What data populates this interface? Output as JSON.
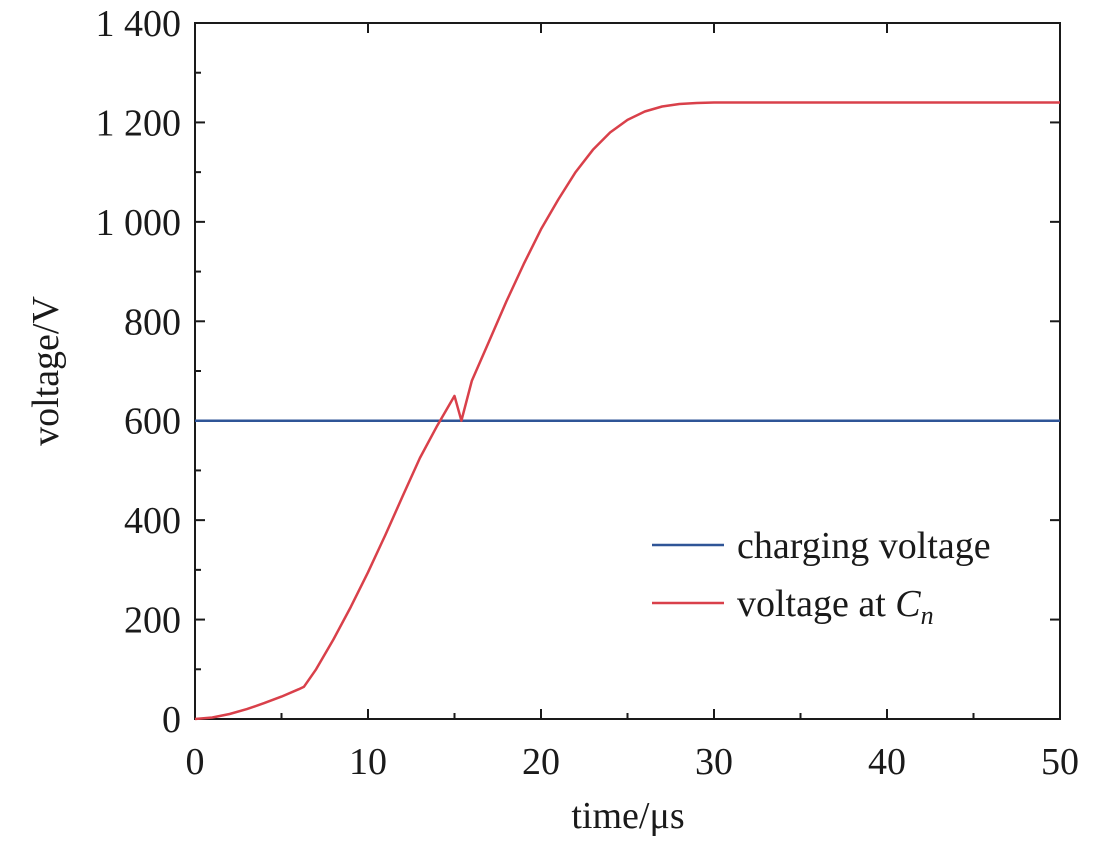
{
  "chart_data": {
    "type": "line",
    "xlabel": "time/μs",
    "ylabel": "voltage/V",
    "xlim": [
      0,
      50
    ],
    "ylim": [
      0,
      1400
    ],
    "x_ticks": [
      0,
      10,
      20,
      30,
      40,
      50
    ],
    "x_tick_labels": [
      "0",
      "10",
      "20",
      "30",
      "40",
      "50"
    ],
    "y_ticks": [
      0,
      200,
      400,
      600,
      800,
      1000,
      1200,
      1400
    ],
    "y_tick_labels": [
      "0",
      "200",
      "400",
      "600",
      "800",
      "1 000",
      "1 200",
      "1 400"
    ],
    "grid": false,
    "legend_position": "lower-right",
    "series": [
      {
        "name": "charging voltage",
        "color": "#2f5597",
        "x": [
          0,
          50
        ],
        "y": [
          600,
          600
        ]
      },
      {
        "name_prefix": "voltage at ",
        "name_main": "C",
        "name_sub": "n",
        "color": "#d9404a",
        "x": [
          0,
          1,
          2,
          3,
          4,
          5,
          6,
          6.3,
          7,
          8,
          9,
          10,
          11,
          12,
          13,
          14,
          15,
          15.4,
          16,
          17,
          18,
          19,
          20,
          21,
          22,
          23,
          24,
          25,
          26,
          27,
          28,
          29,
          30,
          31,
          32,
          35,
          40,
          45,
          50
        ],
        "y": [
          0,
          3,
          10,
          20,
          32,
          45,
          60,
          65,
          100,
          160,
          225,
          295,
          370,
          448,
          525,
          590,
          650,
          600,
          680,
          760,
          840,
          915,
          985,
          1045,
          1100,
          1145,
          1180,
          1205,
          1222,
          1232,
          1237,
          1239,
          1240,
          1240,
          1240,
          1240,
          1240,
          1240,
          1240
        ]
      }
    ]
  }
}
